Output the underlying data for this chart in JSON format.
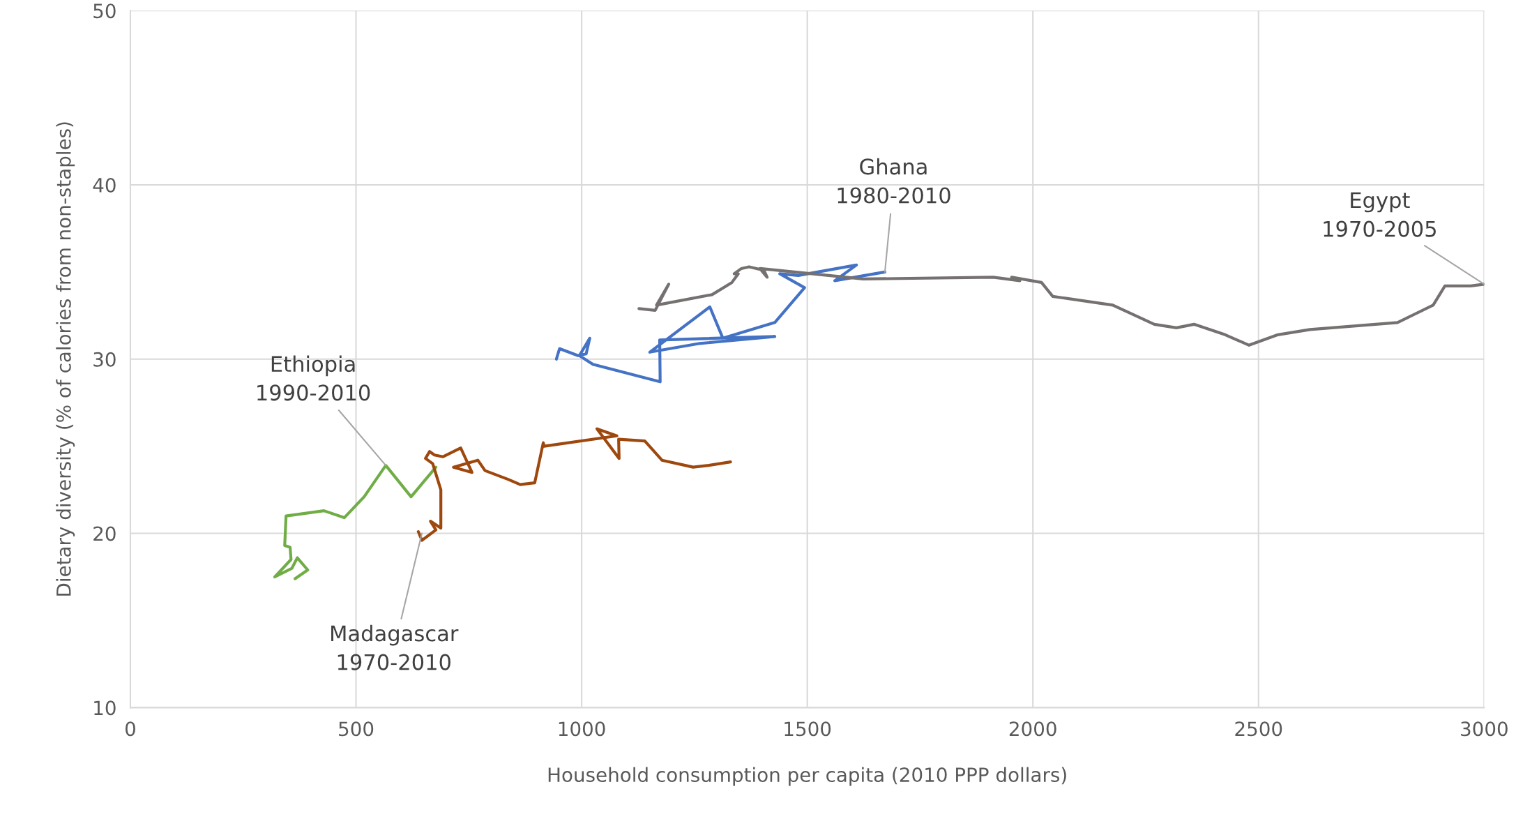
{
  "chart_data": {
    "type": "line",
    "xlabel": "Household consumption per capita (2010 PPP dollars)",
    "ylabel": "Dietary diversity (% of calories from non-staples)",
    "xlim": [
      0,
      3000
    ],
    "ylim": [
      10,
      50
    ],
    "xticks": [
      0,
      500,
      1000,
      1500,
      2000,
      2500,
      3000
    ],
    "yticks": [
      10,
      20,
      30,
      40,
      50
    ],
    "grid": true,
    "legend": false,
    "marker": "none",
    "line_style": "solid",
    "series": [
      {
        "color": "#70ad47",
        "x": [
          365,
          393,
          370,
          358,
          320,
          356,
          354,
          342,
          345,
          429,
          474,
          518,
          566,
          622,
          677
        ],
        "values": [
          17.4,
          17.9,
          18.6,
          18.0,
          17.5,
          18.5,
          19.2,
          19.3,
          21.0,
          21.3,
          20.9,
          22.1,
          23.9,
          22.1,
          23.8
        ]
      },
      {
        "color": "#9e480e",
        "x": [
          1330,
          1281,
          1247,
          1178,
          1140,
          1082,
          1083,
          1034,
          1078,
          917,
          915,
          896,
          864,
          837,
          786,
          770,
          716,
          757,
          732,
          693,
          674,
          663,
          654,
          670,
          688,
          688,
          665,
          677,
          646,
          638
        ],
        "values": [
          24.1,
          23.9,
          23.8,
          24.2,
          25.3,
          25.4,
          24.3,
          26.0,
          25.6,
          25.0,
          25.2,
          22.9,
          22.8,
          23.1,
          23.6,
          24.2,
          23.8,
          23.5,
          24.9,
          24.4,
          24.5,
          24.7,
          24.3,
          24.0,
          22.5,
          20.3,
          20.7,
          20.2,
          19.6,
          20.1
        ]
      },
      {
        "color": "#4472c4",
        "x": [
          944,
          951,
          992,
          1010,
          1018,
          995,
          1025,
          1174,
          1173,
          1428,
          1262,
          1151,
          1284,
          1313,
          1428,
          1494,
          1439,
          1480,
          1609,
          1561,
          1672
        ],
        "values": [
          30.0,
          30.6,
          30.2,
          30.3,
          31.2,
          30.2,
          29.7,
          28.7,
          31.1,
          31.3,
          30.9,
          30.4,
          33.0,
          31.2,
          32.1,
          34.1,
          34.9,
          34.8,
          35.4,
          34.5,
          35.0
        ]
      },
      {
        "color": "#767171",
        "x": [
          1127,
          1163,
          1193,
          1166,
          1289,
          1333,
          1347,
          1338,
          1354,
          1371,
          1404,
          1411,
          1395,
          1624,
          1912,
          1971,
          1953,
          2019,
          2044,
          2177,
          2269,
          2318,
          2357,
          2426,
          2479,
          2543,
          2614,
          2808,
          2887,
          2913,
          2970,
          3000
        ],
        "values": [
          32.9,
          32.8,
          34.3,
          33.1,
          33.7,
          34.4,
          34.9,
          34.9,
          35.2,
          35.3,
          35.1,
          34.7,
          35.2,
          34.6,
          34.7,
          34.5,
          34.7,
          34.4,
          33.6,
          33.1,
          32.0,
          31.8,
          32.0,
          31.4,
          30.8,
          31.4,
          31.7,
          32.1,
          33.1,
          34.2,
          34.2,
          34.3
        ]
      }
    ],
    "annotations": [
      {
        "text": "Ethiopia\n1990-2010",
        "x": 566,
        "y": 23.9
      },
      {
        "text": "Madagascar\n1970-2010",
        "x": 646,
        "y": 20.0
      },
      {
        "text": "Ghana\n1980-2010",
        "x": 1672,
        "y": 35.0
      },
      {
        "text": "Egypt\n1970-2005",
        "x": 3000,
        "y": 34.3
      }
    ]
  }
}
